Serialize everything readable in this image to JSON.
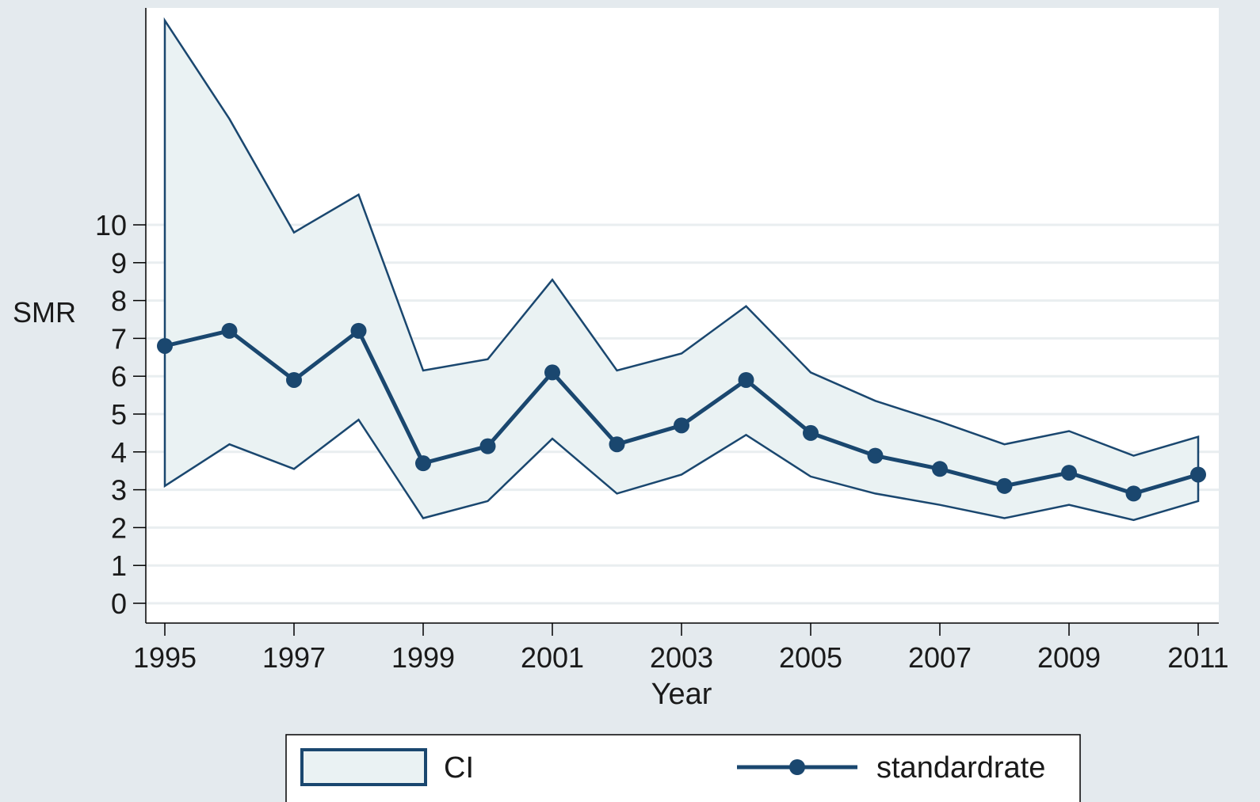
{
  "colors": {
    "page_background": "#e4eaee",
    "plot_background": "#ffffff",
    "ci_fill": "#eaf2f3",
    "line": "#1a476f",
    "grid": "#e9eef0",
    "axis": "#000000"
  },
  "chart_data": {
    "type": "line",
    "xlabel": "Year",
    "ylabel": "SMR",
    "xlim": [
      1995,
      2011
    ],
    "ylim": [
      0,
      10
    ],
    "x_ticks": [
      "1995",
      "1997",
      "1999",
      "2001",
      "2003",
      "2005",
      "2007",
      "2009",
      "2011"
    ],
    "y_ticks": [
      "0",
      "1",
      "2",
      "3",
      "4",
      "5",
      "6",
      "7",
      "8",
      "9",
      "10"
    ],
    "grid": true,
    "legend_placement": "bottom",
    "x": [
      1995,
      1996,
      1997,
      1998,
      1999,
      2000,
      2001,
      2002,
      2003,
      2004,
      2005,
      2006,
      2007,
      2008,
      2009,
      2010,
      2011
    ],
    "series": [
      {
        "name": "standardrate",
        "type": "line",
        "markers": true,
        "values": [
          6.8,
          7.2,
          5.9,
          7.2,
          3.7,
          4.15,
          6.1,
          4.2,
          4.7,
          5.9,
          4.5,
          3.9,
          3.55,
          3.1,
          3.45,
          2.9,
          3.4
        ]
      },
      {
        "name": "CI",
        "type": "band",
        "lower": [
          3.1,
          4.2,
          3.55,
          4.85,
          2.25,
          2.7,
          4.35,
          2.9,
          3.4,
          4.45,
          3.35,
          2.9,
          2.6,
          2.25,
          2.6,
          2.2,
          2.7
        ],
        "upper": [
          15.4,
          12.8,
          9.8,
          10.8,
          6.15,
          6.45,
          8.55,
          6.15,
          6.6,
          7.85,
          6.1,
          5.35,
          4.8,
          4.2,
          4.55,
          3.9,
          4.4
        ]
      }
    ]
  },
  "legend": {
    "items": [
      {
        "label": "CI"
      },
      {
        "label": "standardrate"
      }
    ]
  }
}
